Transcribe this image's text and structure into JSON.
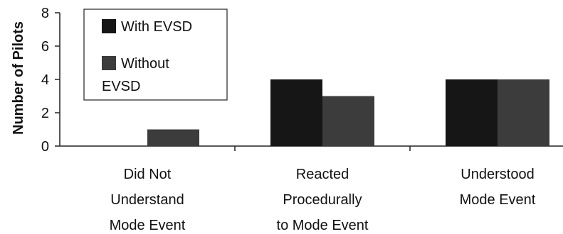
{
  "chart_data": {
    "type": "bar",
    "title": "",
    "xlabel": "",
    "ylabel": "Number of Pilots",
    "ylim": [
      0,
      8
    ],
    "yticks": [
      0,
      2,
      4,
      6,
      8
    ],
    "categories": [
      [
        "Did Not",
        "Understand",
        "Mode Event"
      ],
      [
        "Reacted",
        "Procedurally",
        "to Mode Event"
      ],
      [
        "Understood",
        "Mode Event"
      ]
    ],
    "series": [
      {
        "name": "With EVSD",
        "values": [
          0,
          4,
          4
        ],
        "color": "#161616"
      },
      {
        "name": "Without EVSD",
        "values": [
          1,
          3,
          4
        ],
        "color": "#3c3c3c"
      }
    ],
    "legend": {
      "placement": "top-left",
      "entries": [
        {
          "lines": [
            "With EVSD"
          ]
        },
        {
          "lines": [
            "Without",
            "EVSD"
          ]
        }
      ]
    },
    "grid": false
  }
}
